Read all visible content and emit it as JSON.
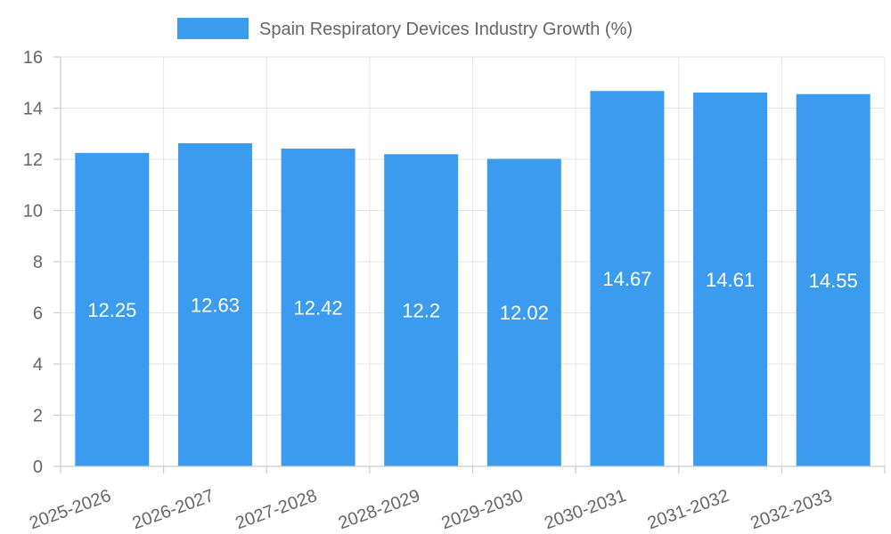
{
  "chart_data": {
    "type": "bar",
    "title": "",
    "xlabel": "",
    "ylabel": "",
    "categories": [
      "2025-2026",
      "2026-2027",
      "2027-2028",
      "2028-2029",
      "2029-2030",
      "2030-2031",
      "2031-2032",
      "2032-2033"
    ],
    "series": [
      {
        "name": "Spain Respiratory Devices Industry Growth (%)",
        "values": [
          12.25,
          12.63,
          12.42,
          12.2,
          12.02,
          14.67,
          14.61,
          14.55
        ],
        "color": "#3a9bef"
      }
    ],
    "data_labels": [
      "12.25",
      "12.63",
      "12.42",
      "12.2",
      "12.02",
      "14.67",
      "14.61",
      "14.55"
    ],
    "ylim": [
      0,
      16
    ],
    "yticks": [
      0,
      2,
      4,
      6,
      8,
      10,
      12,
      14,
      16
    ],
    "grid": true,
    "legend_position": "top-center"
  }
}
